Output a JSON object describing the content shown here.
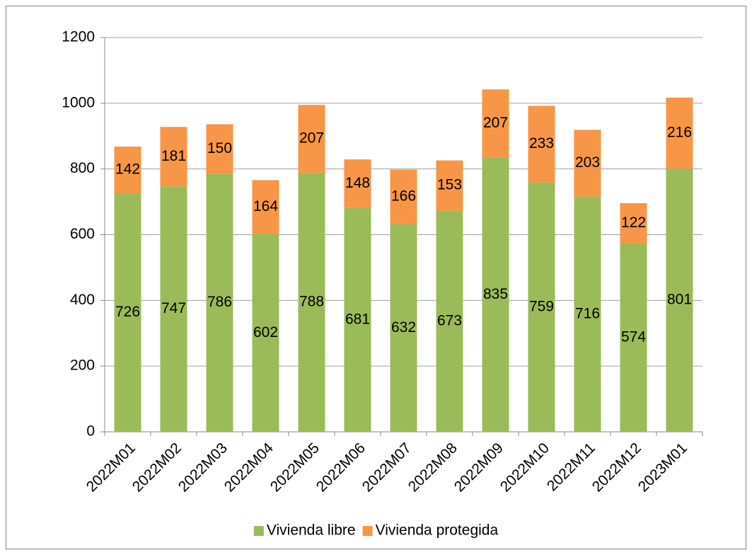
{
  "chart_data": {
    "type": "bar",
    "stacked": true,
    "categories": [
      "2022M01",
      "2022M02",
      "2022M03",
      "2022M04",
      "2022M05",
      "2022M06",
      "2022M07",
      "2022M08",
      "2022M09",
      "2022M10",
      "2022M11",
      "2022M12",
      "2023M01"
    ],
    "series": [
      {
        "name": "Vivienda libre",
        "color": "#9bbb59",
        "values": [
          726,
          747,
          786,
          602,
          788,
          681,
          632,
          673,
          835,
          759,
          716,
          574,
          801
        ]
      },
      {
        "name": "Vivienda protegida",
        "color": "#f79646",
        "values": [
          142,
          181,
          150,
          164,
          207,
          148,
          166,
          153,
          207,
          233,
          203,
          122,
          216
        ]
      }
    ],
    "ylim": [
      0,
      1200
    ],
    "yticks": [
      0,
      200,
      400,
      600,
      800,
      1000,
      1200
    ],
    "grid": true,
    "legend": "bottom"
  }
}
